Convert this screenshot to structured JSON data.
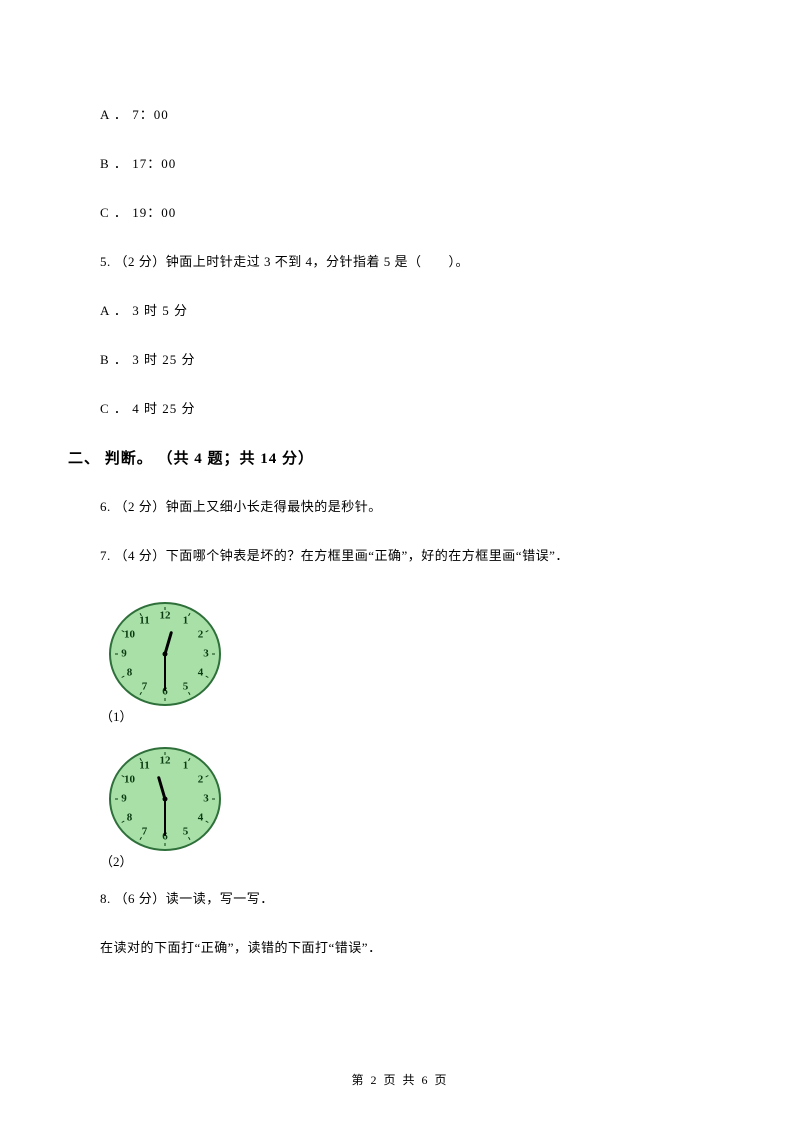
{
  "options_prev": [
    {
      "label": "A",
      "text": "7：00"
    },
    {
      "label": "B",
      "text": "17：00"
    },
    {
      "label": "C",
      "text": "19：00"
    }
  ],
  "q5": {
    "number": "5.",
    "points": "（2 分）",
    "text": "钟面上时针走过 3 不到 4，分针指着 5 是（　　）。",
    "options": [
      {
        "label": "A",
        "text": "3 时 5 分"
      },
      {
        "label": "B",
        "text": "3 时 25 分"
      },
      {
        "label": "C",
        "text": "4 时 25 分"
      }
    ]
  },
  "section2": {
    "heading": "二、 判断。 （共 4 题；共 14 分）"
  },
  "q6": {
    "number": "6.",
    "points": "（2 分）",
    "text": "钟面上又细小长走得最快的是秒针。"
  },
  "q7": {
    "number": "7.",
    "points": "（4 分）",
    "text": "下面哪个钟表是坏的？在方框里画“正确”，好的在方框里画“错误”．",
    "sub1_label": "（1）",
    "sub2_label": "（2）"
  },
  "q8": {
    "number": "8.",
    "points": "（6 分）",
    "text": "读一读，写一写．",
    "text2": "在读对的下面打“正确”，读错的下面打“错误”．"
  },
  "clock": {
    "face_fill": "#a8e0a8",
    "stroke": "#2e6f3a",
    "num_fill": "#0a3a10",
    "numbers": [
      "12",
      "1",
      "2",
      "3",
      "4",
      "5",
      "6",
      "7",
      "8",
      "9",
      "10",
      "11"
    ],
    "radius_outer": 55,
    "radius_num": 41,
    "tick_outer": 50,
    "tick_inner": 47,
    "clock1": {
      "hour_angle": 15,
      "minute_angle": 180
    },
    "clock2": {
      "hour_angle": 345,
      "minute_angle": 180
    }
  },
  "footer": {
    "page_label": "第 2 页",
    "total_label": "共 6 页"
  }
}
